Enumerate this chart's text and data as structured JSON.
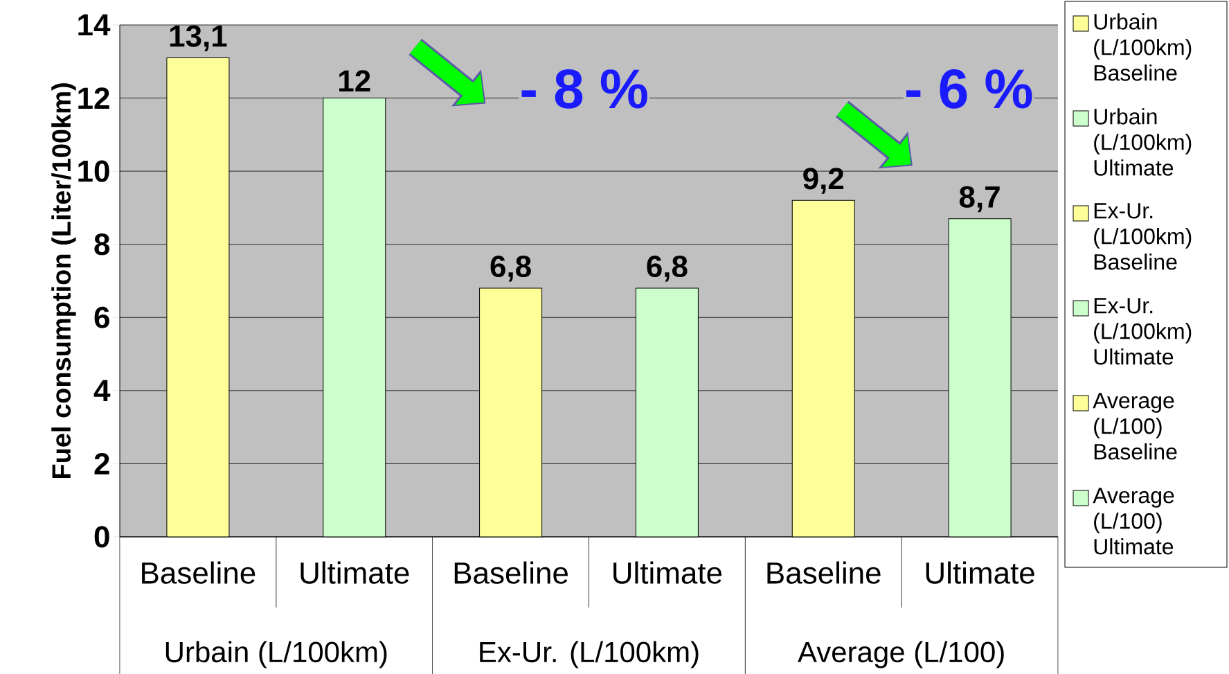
{
  "chart_data": {
    "type": "bar",
    "ylabel": "Fuel consumption (Liter/100km)",
    "categories": [
      "Baseline",
      "Ultimate",
      "Baseline",
      "Ultimate",
      "Baseline",
      "Ultimate"
    ],
    "series": [
      {
        "name": "Urbain (L/100km) Baseline",
        "color": "#ffff99",
        "values": [
          13.1,
          null,
          null,
          null,
          null,
          null
        ],
        "value_labels": [
          "13,1",
          null,
          null,
          null,
          null,
          null
        ]
      },
      {
        "name": "Urbain (L/100km) Ultimate",
        "color": "#ccffcc",
        "values": [
          null,
          12,
          null,
          null,
          null,
          null
        ],
        "value_labels": [
          null,
          "12",
          null,
          null,
          null,
          null
        ]
      },
      {
        "name": "Ex-Ur. (L/100km) Baseline",
        "color": "#ffff99",
        "values": [
          null,
          null,
          6.8,
          null,
          null,
          null
        ],
        "value_labels": [
          null,
          null,
          "6,8",
          null,
          null,
          null
        ]
      },
      {
        "name": "Ex-Ur. (L/100km) Ultimate",
        "color": "#ccffcc",
        "values": [
          null,
          null,
          null,
          6.8,
          null,
          null
        ],
        "value_labels": [
          null,
          null,
          null,
          "6,8",
          null,
          null
        ]
      },
      {
        "name": "Average (L/100) Baseline",
        "color": "#ffff99",
        "values": [
          null,
          null,
          null,
          null,
          9.2,
          null
        ],
        "value_labels": [
          null,
          null,
          null,
          null,
          "9,2",
          null
        ]
      },
      {
        "name": "Average (L/100) Ultimate",
        "color": "#ccffcc",
        "values": [
          null,
          null,
          null,
          null,
          null,
          8.7
        ],
        "value_labels": [
          null,
          null,
          null,
          null,
          null,
          "8,7"
        ]
      }
    ],
    "ylim": [
      0,
      14
    ],
    "yticks": [
      0,
      2,
      4,
      6,
      8,
      10,
      12,
      14
    ],
    "grid": "y",
    "legend": "right",
    "annotations": [
      "Urbain (L/100km)",
      "Ex-Ur. (L/100km)",
      "Average (L/100)",
      "- 8 %",
      "- 6 %"
    ]
  }
}
